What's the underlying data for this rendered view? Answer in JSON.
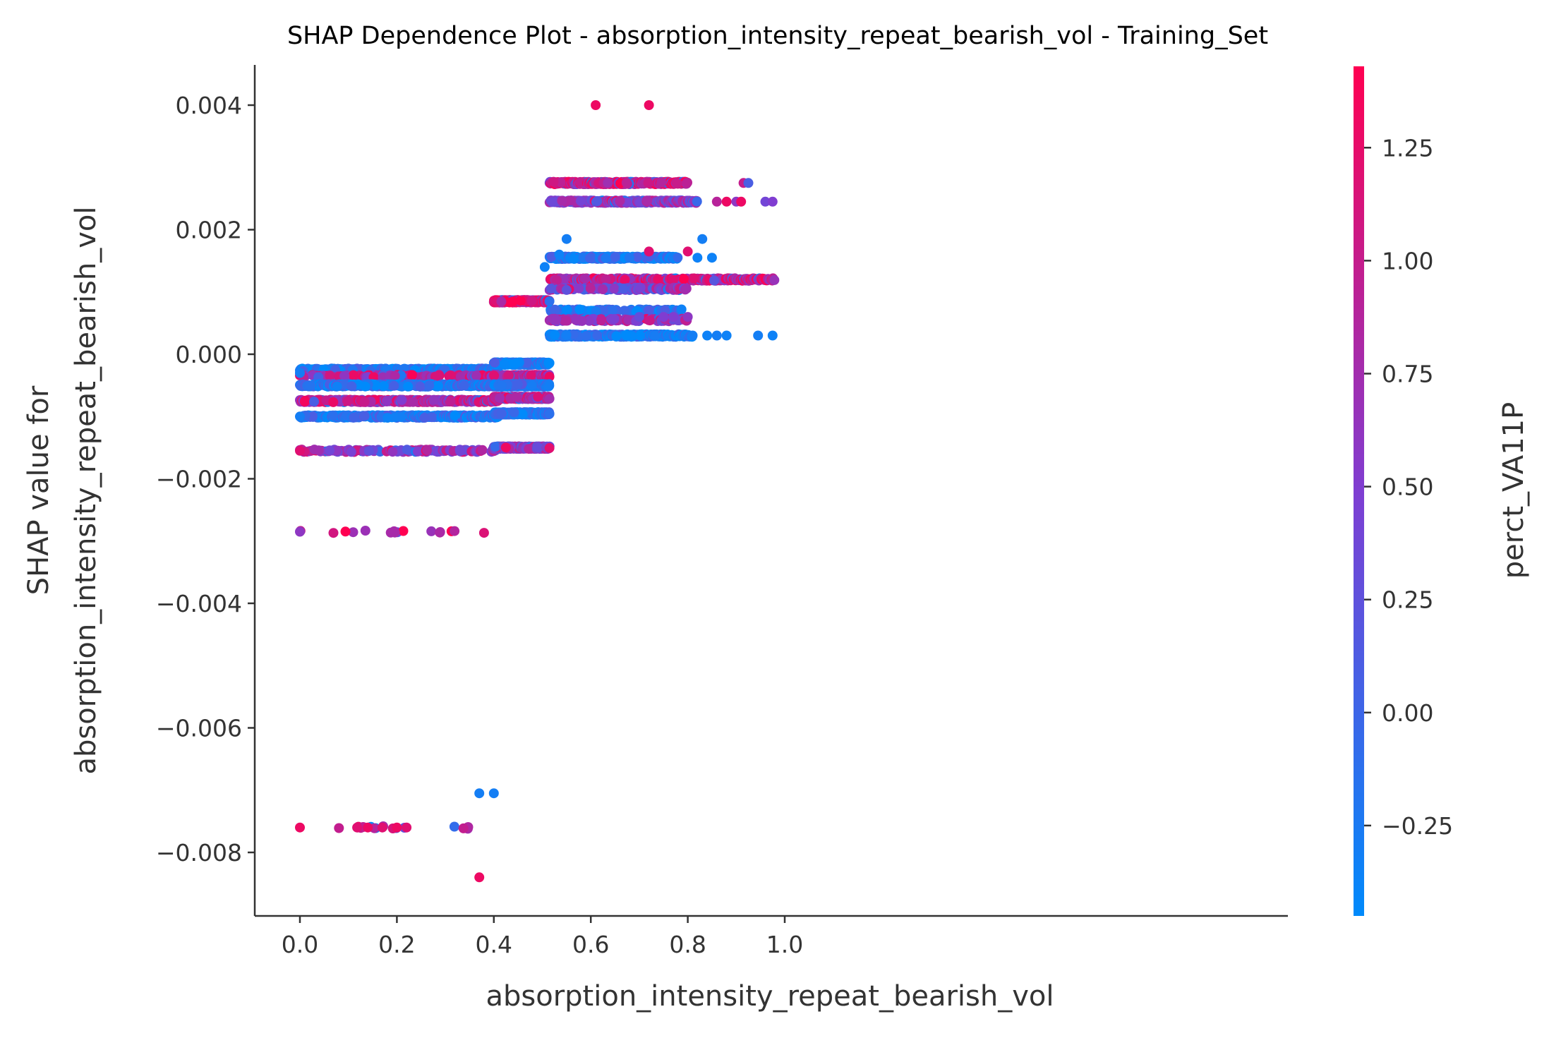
{
  "chart_data": {
    "type": "scatter",
    "title": "SHAP Dependence Plot - absorption_intensity_repeat_bearish_vol - Training_Set",
    "xlabel": "absorption_intensity_repeat_bearish_vol",
    "ylabel": [
      "SHAP value for",
      "absorption_intensity_repeat_bearish_vol"
    ],
    "xlim": [
      -0.05,
      1.025
    ],
    "ylim": [
      -0.009,
      0.0046
    ],
    "xticks": [
      0.0,
      0.2,
      0.4,
      0.6,
      0.8,
      1.0
    ],
    "xtick_labels": [
      "0.0",
      "0.2",
      "0.4",
      "0.6",
      "0.8",
      "1.0"
    ],
    "yticks": [
      0.004,
      0.002,
      0.0,
      -0.002,
      -0.004,
      -0.006,
      -0.008
    ],
    "ytick_labels": [
      "0.004",
      "0.002",
      "0.000",
      "−0.002",
      "−0.004",
      "−0.006",
      "−0.008"
    ],
    "colorbar": {
      "label": "perct_VA11P",
      "range": [
        -0.45,
        1.43
      ],
      "ticks": [
        1.25,
        1.0,
        0.75,
        0.5,
        0.25,
        0.0,
        -0.25
      ],
      "tick_labels": [
        "1.25",
        "1.00",
        "0.75",
        "0.50",
        "0.25",
        "0.00",
        "−0.25"
      ],
      "colormap": [
        "#008afb",
        "#7f3ed2",
        "#ff0051"
      ]
    },
    "grid": false,
    "bands": [
      {
        "x_range": [
          0.0,
          0.41
        ],
        "y": -0.00025,
        "color_value": -0.3,
        "density": "dense"
      },
      {
        "x_range": [
          0.0,
          0.41
        ],
        "y": -0.00035,
        "color_value": 0.9,
        "density": "medium"
      },
      {
        "x_range": [
          0.0,
          0.41
        ],
        "y": -0.0005,
        "color_value": -0.2,
        "density": "dense"
      },
      {
        "x_range": [
          0.0,
          0.41
        ],
        "y": -0.00075,
        "color_value": 0.9,
        "density": "dense"
      },
      {
        "x_range": [
          0.0,
          0.41
        ],
        "y": -0.001,
        "color_value": -0.2,
        "density": "dense"
      },
      {
        "x_range": [
          0.0,
          0.41
        ],
        "y": -0.00155,
        "color_value": 0.7,
        "density": "medium"
      },
      {
        "x_range": [
          0.0,
          0.4
        ],
        "y": -0.00285,
        "color_value": 1.1,
        "density": "sparse"
      },
      {
        "x_range": [
          0.0,
          0.4
        ],
        "y": -0.0076,
        "color_value": 1.2,
        "density": "sparse"
      },
      {
        "x_range": [
          0.4,
          0.515
        ],
        "y": 0.00085,
        "color_value": 1.2,
        "density": "dense"
      },
      {
        "x_range": [
          0.4,
          0.515
        ],
        "y": -0.00015,
        "color_value": -0.3,
        "density": "dense"
      },
      {
        "x_range": [
          0.4,
          0.515
        ],
        "y": -0.00035,
        "color_value": 0.9,
        "density": "dense"
      },
      {
        "x_range": [
          0.4,
          0.515
        ],
        "y": -0.0005,
        "color_value": -0.2,
        "density": "dense"
      },
      {
        "x_range": [
          0.4,
          0.515
        ],
        "y": -0.0007,
        "color_value": 0.9,
        "density": "dense"
      },
      {
        "x_range": [
          0.4,
          0.515
        ],
        "y": -0.00095,
        "color_value": -0.2,
        "density": "dense"
      },
      {
        "x_range": [
          0.4,
          0.515
        ],
        "y": -0.0015,
        "color_value": 0.6,
        "density": "dense"
      },
      {
        "x_range": [
          0.515,
          0.8
        ],
        "y": 0.00275,
        "color_value": 1.1,
        "density": "dense"
      },
      {
        "x_range": [
          0.515,
          0.82
        ],
        "y": 0.00245,
        "color_value": 0.6,
        "density": "dense"
      },
      {
        "x_range": [
          0.515,
          0.78
        ],
        "y": 0.00155,
        "color_value": -0.3,
        "density": "dense"
      },
      {
        "x_range": [
          0.515,
          0.98
        ],
        "y": 0.0012,
        "color_value": 1.0,
        "density": "dense"
      },
      {
        "x_range": [
          0.515,
          0.8
        ],
        "y": 0.00105,
        "color_value": 0.5,
        "density": "medium"
      },
      {
        "x_range": [
          0.515,
          0.8
        ],
        "y": 0.0007,
        "color_value": -0.2,
        "density": "medium"
      },
      {
        "x_range": [
          0.515,
          0.8
        ],
        "y": 0.00055,
        "color_value": 0.7,
        "density": "medium"
      },
      {
        "x_range": [
          0.515,
          0.81
        ],
        "y": 0.0003,
        "color_value": -0.35,
        "density": "dense"
      }
    ],
    "points": [
      {
        "x": 0.61,
        "y": 0.004,
        "c": 1.3
      },
      {
        "x": 0.72,
        "y": 0.004,
        "c": 1.3
      },
      {
        "x": 0.37,
        "y": -0.0084,
        "c": 1.3
      },
      {
        "x": 0.37,
        "y": -0.00705,
        "c": -0.3
      },
      {
        "x": 0.4,
        "y": -0.00705,
        "c": -0.3
      },
      {
        "x": 0.0,
        "y": -0.00285,
        "c": 0.6
      },
      {
        "x": 0.0,
        "y": -0.00155,
        "c": 1.2
      },
      {
        "x": 0.0,
        "y": -0.001,
        "c": -0.3
      },
      {
        "x": 0.0,
        "y": -0.0003,
        "c": -0.3
      },
      {
        "x": 0.0,
        "y": -0.0076,
        "c": 1.3
      },
      {
        "x": 0.118,
        "y": -0.0076,
        "c": 1.2
      },
      {
        "x": 0.14,
        "y": -0.0076,
        "c": 1.3
      },
      {
        "x": 0.17,
        "y": -0.0076,
        "c": 1.2
      },
      {
        "x": 0.2,
        "y": -0.0076,
        "c": 1.3
      },
      {
        "x": 0.22,
        "y": -0.0076,
        "c": 1.2
      },
      {
        "x": 0.505,
        "y": 0.0014,
        "c": -0.35
      },
      {
        "x": 0.55,
        "y": 0.00185,
        "c": -0.3
      },
      {
        "x": 0.535,
        "y": 0.0016,
        "c": -0.35
      },
      {
        "x": 0.72,
        "y": 0.00165,
        "c": 1.2
      },
      {
        "x": 0.8,
        "y": 0.00165,
        "c": 1.2
      },
      {
        "x": 0.82,
        "y": 0.00155,
        "c": -0.35
      },
      {
        "x": 0.83,
        "y": 0.00185,
        "c": -0.3
      },
      {
        "x": 0.85,
        "y": 0.00155,
        "c": -0.35
      },
      {
        "x": 0.86,
        "y": 0.00245,
        "c": 0.9
      },
      {
        "x": 0.88,
        "y": 0.00245,
        "c": 1.3
      },
      {
        "x": 0.9,
        "y": 0.00245,
        "c": 0.6
      },
      {
        "x": 0.91,
        "y": 0.00245,
        "c": 1.3
      },
      {
        "x": 0.915,
        "y": 0.00275,
        "c": 1.0
      },
      {
        "x": 0.925,
        "y": 0.00275,
        "c": 0.1
      },
      {
        "x": 0.96,
        "y": 0.00245,
        "c": 0.4
      },
      {
        "x": 0.975,
        "y": 0.00245,
        "c": 0.5
      },
      {
        "x": 0.81,
        "y": 0.0003,
        "c": -0.3
      },
      {
        "x": 0.84,
        "y": 0.0003,
        "c": -0.35
      },
      {
        "x": 0.86,
        "y": 0.0003,
        "c": -0.3
      },
      {
        "x": 0.88,
        "y": 0.0003,
        "c": -0.35
      },
      {
        "x": 0.945,
        "y": 0.0003,
        "c": -0.3
      },
      {
        "x": 0.975,
        "y": 0.0003,
        "c": -0.35
      },
      {
        "x": 0.8,
        "y": 0.0006,
        "c": 0.6
      },
      {
        "x": 0.77,
        "y": 0.0006,
        "c": 0.5
      },
      {
        "x": 0.75,
        "y": 0.0006,
        "c": 0.5
      },
      {
        "x": 0.7,
        "y": 0.0006,
        "c": 0.3
      }
    ]
  }
}
